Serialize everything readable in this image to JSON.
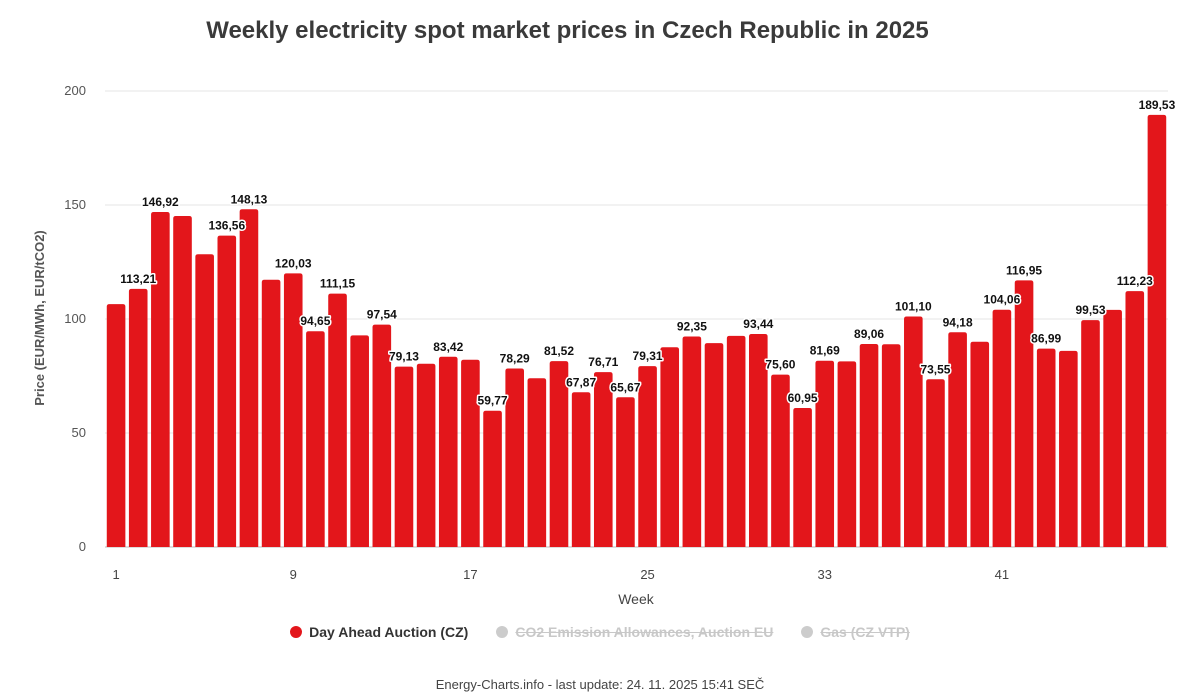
{
  "chart_data": {
    "type": "bar",
    "title": "Weekly electricity spot market prices in Czech Republic in 2025",
    "xlabel": "Week",
    "ylabel": "Price (EUR/MWh, EUR/tCO2)",
    "ylim": [
      0,
      200
    ],
    "yticks": [
      "0",
      "50",
      "100",
      "150",
      "200"
    ],
    "xtick_labels": [
      {
        "week": 1,
        "label": "1"
      },
      {
        "week": 9,
        "label": "9"
      },
      {
        "week": 17,
        "label": "17"
      },
      {
        "week": 25,
        "label": "25"
      },
      {
        "week": 33,
        "label": "33"
      },
      {
        "week": 41,
        "label": "41"
      }
    ],
    "grid": true,
    "series": [
      {
        "name": "Day Ahead Auction (CZ)",
        "color": "#e3161b",
        "values": [
          106.5,
          113.21,
          146.92,
          145.2,
          128.4,
          136.56,
          148.13,
          117.2,
          120.03,
          94.65,
          111.15,
          92.8,
          97.54,
          79.13,
          80.4,
          83.42,
          82.1,
          59.77,
          78.29,
          74.0,
          81.52,
          67.87,
          76.71,
          65.67,
          79.31,
          87.6,
          92.35,
          89.4,
          92.6,
          93.44,
          75.6,
          60.95,
          81.69,
          81.4,
          89.06,
          88.9,
          101.1,
          73.55,
          94.18,
          90.0,
          104.06,
          116.95,
          86.99,
          86.0,
          99.53,
          104.0,
          112.23,
          189.53
        ],
        "labels": [
          "",
          "113,21",
          "146,92",
          "",
          "",
          "136,56",
          "148,13",
          "",
          "120,03",
          "94,65",
          "111,15",
          "",
          "97,54",
          "79,13",
          "",
          "83,42",
          "",
          "59,77",
          "78,29",
          "",
          "81,52",
          "67,87",
          "76,71",
          "65,67",
          "79,31",
          "",
          "92,35",
          "",
          "",
          "93,44",
          "75,60",
          "60,95",
          "81,69",
          "",
          "89,06",
          "",
          "101,10",
          "73,55",
          "94,18",
          "",
          "104,06",
          "116,95",
          "86,99",
          "",
          "99,53",
          "",
          "112,23",
          "189,53"
        ]
      }
    ],
    "legend_position": "bottom"
  },
  "legend": [
    {
      "label": "Day Ahead Auction (CZ)",
      "color": "#e3161b",
      "active": true
    },
    {
      "label": "CO2 Emission Allowances, Auction EU",
      "color": "#cccccc",
      "active": false
    },
    {
      "label": "Gas (CZ VTP)",
      "color": "#cccccc",
      "active": false
    }
  ],
  "footer": "Energy-Charts.info - last update: 24. 11. 2025 15:41 SEČ"
}
